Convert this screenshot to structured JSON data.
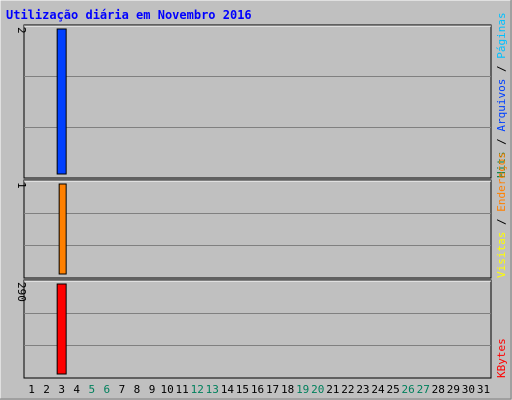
{
  "chart_data": {
    "type": "bar",
    "title": "Utilização diária em Novembro 2016",
    "x": [
      "1",
      "2",
      "3",
      "4",
      "5",
      "6",
      "7",
      "8",
      "9",
      "10",
      "11",
      "12",
      "13",
      "14",
      "15",
      "16",
      "17",
      "18",
      "19",
      "20",
      "21",
      "22",
      "23",
      "24",
      "25",
      "26",
      "27",
      "28",
      "29",
      "30",
      "31"
    ],
    "weekend_days": [
      "5",
      "6",
      "12",
      "13",
      "19",
      "20",
      "26",
      "27"
    ],
    "panels": [
      {
        "name": "hits_files",
        "ymax_label": "2",
        "ymax": 2,
        "series": [
          {
            "name": "Arquivos",
            "color": "#0040ff",
            "values": {
              "3": 2
            }
          }
        ]
      },
      {
        "name": "hosts",
        "ymax_label": "1",
        "ymax": 1,
        "series": [
          {
            "name": "Endereços",
            "color": "#ff8000",
            "values": {
              "3": 1
            }
          }
        ]
      },
      {
        "name": "kbytes",
        "ymax_label": "290",
        "ymax": 290,
        "series": [
          {
            "name": "KBytes",
            "color": "#ff0000",
            "values": {
              "3": 290
            }
          }
        ]
      }
    ],
    "legend_right_top": [
      {
        "text": "Hits",
        "color": "#008040"
      },
      {
        "text": "/",
        "color": "#000000"
      },
      {
        "text": "Arquivos",
        "color": "#0040ff"
      },
      {
        "text": "/",
        "color": "#000000"
      },
      {
        "text": "Páginas",
        "color": "#00c0ff"
      }
    ],
    "legend_right_mid": [
      {
        "text": "Visitas",
        "color": "#ffff00"
      },
      {
        "text": "/",
        "color": "#000000"
      },
      {
        "text": "Endereços",
        "color": "#ff8000"
      }
    ],
    "legend_right_bottom": [
      {
        "text": "KBytes",
        "color": "#ff0000"
      }
    ],
    "colors": {
      "background": "#c0c0c0",
      "title": "#0000ff",
      "weekday_label": "#000000",
      "weekend_label": "#00805c"
    }
  }
}
